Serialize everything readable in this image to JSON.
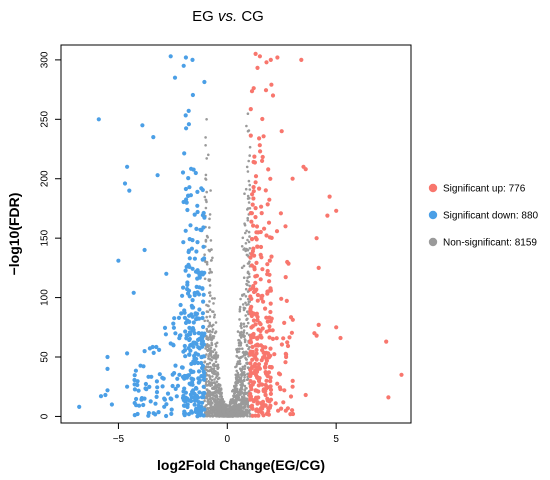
{
  "chart_data": {
    "type": "scatter",
    "title_parts": [
      "EG ",
      "vs.",
      " CG"
    ],
    "xlabel": "log2Fold Change(EG/CG)",
    "ylabel": "−log10(FDR)",
    "xlim": [
      -7.5,
      8.3
    ],
    "ylim": [
      -3,
      310
    ],
    "xticks": [
      -5,
      0,
      5
    ],
    "xtick_labels": [
      "−5",
      "0",
      "5"
    ],
    "yticks": [
      0,
      50,
      100,
      150,
      200,
      250,
      300
    ],
    "grid": false,
    "legend_position": "right",
    "series": [
      {
        "name": "Significant up: 776",
        "color": "#f8766d",
        "count": 776,
        "sampled_points": [
          [
            1.3,
            305
          ],
          [
            1.5,
            303
          ],
          [
            1.8,
            298
          ],
          [
            2.0,
            300
          ],
          [
            2.3,
            302
          ],
          [
            3.4,
            300
          ],
          [
            2.1,
            270
          ],
          [
            2.5,
            240
          ],
          [
            3.0,
            200
          ],
          [
            3.5,
            210
          ],
          [
            3.6,
            208
          ],
          [
            4.7,
            185
          ],
          [
            4.6,
            169
          ],
          [
            5.0,
            173
          ],
          [
            4.1,
            150
          ],
          [
            4.2,
            125
          ],
          [
            4.0,
            70
          ],
          [
            4.2,
            77
          ],
          [
            4.1,
            68
          ],
          [
            5.0,
            75
          ],
          [
            5.2,
            66
          ],
          [
            7.3,
            63
          ],
          [
            8.0,
            35
          ],
          [
            7.4,
            16
          ],
          [
            3.6,
            18
          ],
          [
            2.9,
            2
          ],
          [
            3.0,
            25
          ],
          [
            2.7,
            52
          ],
          [
            2.7,
            50
          ],
          [
            1.1,
            8
          ],
          [
            1.4,
            12
          ],
          [
            1.8,
            30
          ],
          [
            2.0,
            80
          ]
        ]
      },
      {
        "name": "Significant down: 880",
        "color": "#4b9fe6",
        "count": 880,
        "sampled_points": [
          [
            -2.6,
            303
          ],
          [
            -1.9,
            302
          ],
          [
            -1.6,
            300
          ],
          [
            -2.0,
            295
          ],
          [
            -2.4,
            285
          ],
          [
            -5.9,
            250
          ],
          [
            -3.4,
            235
          ],
          [
            -3.9,
            245
          ],
          [
            -4.6,
            210
          ],
          [
            -4.7,
            196
          ],
          [
            -4.5,
            190
          ],
          [
            -3.2,
            203
          ],
          [
            -5.0,
            131
          ],
          [
            -4.3,
            104
          ],
          [
            -3.8,
            140
          ],
          [
            -2.8,
            120
          ],
          [
            -5.5,
            50
          ],
          [
            -5.5,
            40
          ],
          [
            -4.6,
            53
          ],
          [
            -3.8,
            55
          ],
          [
            -5.8,
            17
          ],
          [
            -5.6,
            18
          ],
          [
            -5.5,
            22
          ],
          [
            -6.8,
            8
          ],
          [
            -5.3,
            10
          ],
          [
            -4.6,
            25
          ],
          [
            -2.9,
            15
          ],
          [
            -1.9,
            20
          ],
          [
            -1.3,
            12
          ],
          [
            -1.5,
            70
          ],
          [
            -2.2,
            35
          ],
          [
            -1.2,
            45
          ]
        ]
      },
      {
        "name": "Non-significant: 8159",
        "color": "#9a9a9a",
        "count": 8159,
        "sampled_points": [
          [
            0.0,
            0.5
          ],
          [
            0.3,
            2
          ],
          [
            -0.3,
            2
          ],
          [
            0.5,
            8
          ],
          [
            -0.5,
            8
          ],
          [
            0.7,
            20
          ],
          [
            -0.7,
            20
          ],
          [
            0.9,
            60
          ],
          [
            -0.9,
            60
          ],
          [
            1.0,
            120
          ],
          [
            -1.0,
            130
          ],
          [
            1.0,
            180
          ],
          [
            -1.0,
            200
          ],
          [
            0.95,
            240
          ],
          [
            -0.95,
            250
          ],
          [
            0.8,
            40
          ],
          [
            -0.8,
            45
          ]
        ]
      }
    ]
  }
}
